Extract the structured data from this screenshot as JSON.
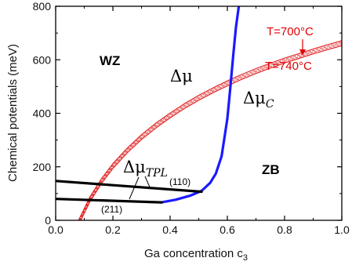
{
  "chart_data": {
    "type": "line",
    "xlabel": "Ga concentration c",
    "xlabel_subscript": "3",
    "ylabel": "Chemical potentials (meV)",
    "xlim": [
      0.0,
      1.0
    ],
    "ylim": [
      0,
      800
    ],
    "xticks": [
      "0.0",
      "0.2",
      "0.4",
      "0.6",
      "0.8",
      "1.0"
    ],
    "yticks": [
      "0",
      "200",
      "400",
      "600",
      "800"
    ],
    "grid": false,
    "annotations": {
      "wz": "WZ",
      "zb": "ZB",
      "delta_mu": "Δμ",
      "delta_mu_c": "Δμ",
      "delta_mu_c_sub": "C",
      "delta_mu_tpl": "Δμ",
      "delta_mu_tpl_sub": "TPL",
      "plane_110": "(110)",
      "plane_211": "(211)",
      "t_700": "T=700°C",
      "t_740": "T=740°C"
    },
    "colors": {
      "delta_mu": "#e02020",
      "delta_mu_c": "#1a1aff",
      "delta_mu_tpl": "#000000",
      "temperature_text": "#e00000"
    },
    "series": [
      {
        "key": "dmu_700",
        "style": "solid",
        "x": [
          0.08,
          0.12,
          0.16,
          0.2,
          0.25,
          0.3,
          0.35,
          0.4,
          0.45,
          0.5,
          0.55,
          0.6,
          0.65,
          0.7,
          0.75,
          0.8,
          0.85,
          0.9,
          0.95,
          1.0
        ],
        "y": [
          0,
          88,
          155,
          212,
          270,
          320,
          363,
          401,
          436,
          467,
          495,
          521,
          545,
          567,
          587,
          606,
          623,
          640,
          656,
          671
        ]
      },
      {
        "key": "dmu_713",
        "style": "dashed",
        "x": [
          0.082,
          0.12,
          0.16,
          0.2,
          0.25,
          0.3,
          0.35,
          0.4,
          0.45,
          0.5,
          0.55,
          0.6,
          0.65,
          0.7,
          0.75,
          0.8,
          0.85,
          0.9,
          0.95,
          1.0
        ],
        "y": [
          0,
          82,
          149,
          206,
          264,
          314,
          357,
          395,
          430,
          461,
          489,
          515,
          539,
          561,
          581,
          600,
          617,
          634,
          650,
          665
        ]
      },
      {
        "key": "dmu_727",
        "style": "dashed",
        "x": [
          0.085,
          0.12,
          0.16,
          0.2,
          0.25,
          0.3,
          0.35,
          0.4,
          0.45,
          0.5,
          0.55,
          0.6,
          0.65,
          0.7,
          0.75,
          0.8,
          0.85,
          0.9,
          0.95,
          1.0
        ],
        "y": [
          0,
          76,
          143,
          200,
          258,
          308,
          351,
          389,
          424,
          455,
          483,
          509,
          533,
          555,
          575,
          594,
          611,
          628,
          644,
          659
        ]
      },
      {
        "key": "dmu_740",
        "style": "solid",
        "x": [
          0.088,
          0.12,
          0.16,
          0.2,
          0.25,
          0.3,
          0.35,
          0.4,
          0.45,
          0.5,
          0.55,
          0.6,
          0.65,
          0.7,
          0.75,
          0.8,
          0.85,
          0.9,
          0.95,
          1.0
        ],
        "y": [
          0,
          70,
          137,
          194,
          252,
          302,
          345,
          383,
          418,
          449,
          477,
          503,
          527,
          549,
          569,
          588,
          605,
          622,
          638,
          653
        ]
      },
      {
        "key": "dmu_c",
        "x": [
          0.37,
          0.42,
          0.47,
          0.51,
          0.54,
          0.56,
          0.58,
          0.6,
          0.61,
          0.62,
          0.63,
          0.64
        ],
        "y": [
          67,
          77,
          92,
          110,
          140,
          175,
          240,
          380,
          490,
          610,
          720,
          800
        ]
      },
      {
        "key": "tpl_110",
        "x": [
          0.0,
          0.51
        ],
        "y": [
          147,
          107
        ]
      },
      {
        "key": "tpl_211",
        "x": [
          0.0,
          0.37
        ],
        "y": [
          80,
          67
        ]
      }
    ]
  }
}
